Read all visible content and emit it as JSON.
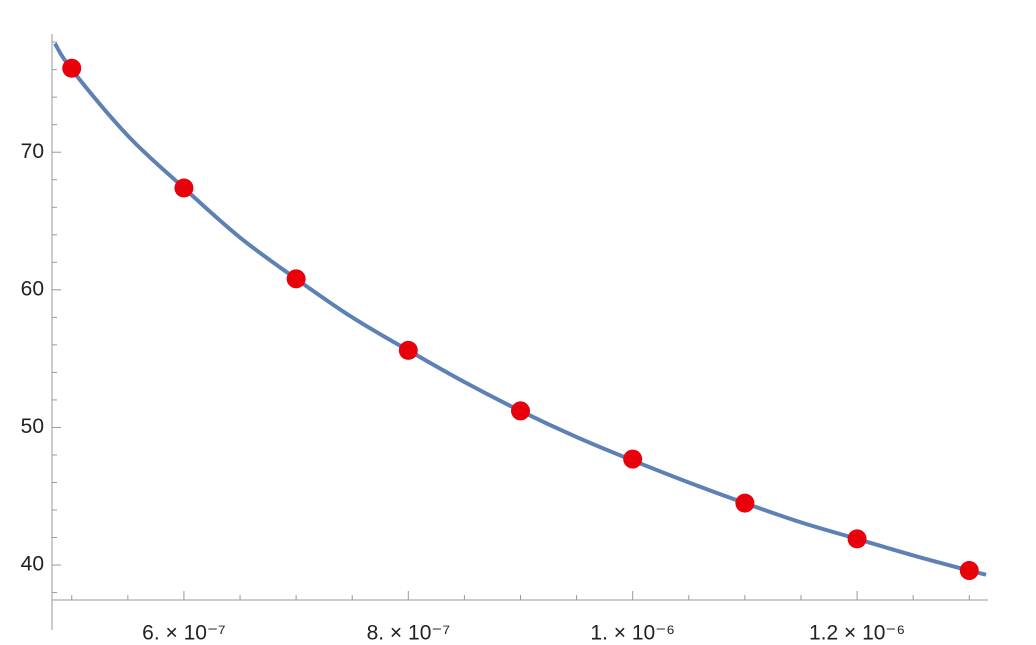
{
  "chart_data": {
    "type": "scatter",
    "xlim": [
      4.824e-07,
      1.3167e-06
    ],
    "ylim": [
      37.46,
      78.3
    ],
    "xticks": [
      {
        "value": 6e-07,
        "label": "6. × 10⁻⁷"
      },
      {
        "value": 8e-07,
        "label": "8. × 10⁻⁷"
      },
      {
        "value": 1e-06,
        "label": "1. × 10⁻⁶"
      },
      {
        "value": 1.2e-06,
        "label": "1.2 × 10⁻⁶"
      }
    ],
    "xminorticks": [
      5e-07,
      5.5e-07,
      6.5e-07,
      7e-07,
      7.5e-07,
      8.5e-07,
      9e-07,
      9.5e-07,
      1.05e-06,
      1.1e-06,
      1.15e-06,
      1.25e-06,
      1.3e-06
    ],
    "yticks": [
      40,
      50,
      60,
      70
    ],
    "yminorticks": [
      38,
      42,
      44,
      46,
      48,
      52,
      54,
      56,
      58,
      62,
      64,
      66,
      68,
      72,
      74,
      76,
      78
    ],
    "series": [
      {
        "mode": "line",
        "color": "#5e81b5",
        "x": [
          4.85e-07,
          5e-07,
          5.5e-07,
          6e-07,
          6.5e-07,
          7e-07,
          7.5e-07,
          8e-07,
          8.5e-07,
          9e-07,
          9.5e-07,
          1e-06,
          1.05e-06,
          1.1e-06,
          1.15e-06,
          1.2e-06,
          1.25e-06,
          1.3e-06,
          1.315e-06
        ],
        "values": [
          77.9,
          76.0,
          71.2,
          67.4,
          63.8,
          60.8,
          58.0,
          55.6,
          53.3,
          51.2,
          49.3,
          47.6,
          46.0,
          44.5,
          43.1,
          41.9,
          40.7,
          39.6,
          39.3
        ]
      },
      {
        "mode": "markers",
        "color": "#e8000b",
        "x": [
          5e-07,
          6e-07,
          7e-07,
          8e-07,
          9e-07,
          1e-06,
          1.1e-06,
          1.2e-06,
          1.3e-06
        ],
        "values": [
          76.1,
          67.4,
          60.8,
          55.6,
          51.2,
          47.7,
          44.5,
          41.9,
          39.6
        ]
      }
    ]
  }
}
